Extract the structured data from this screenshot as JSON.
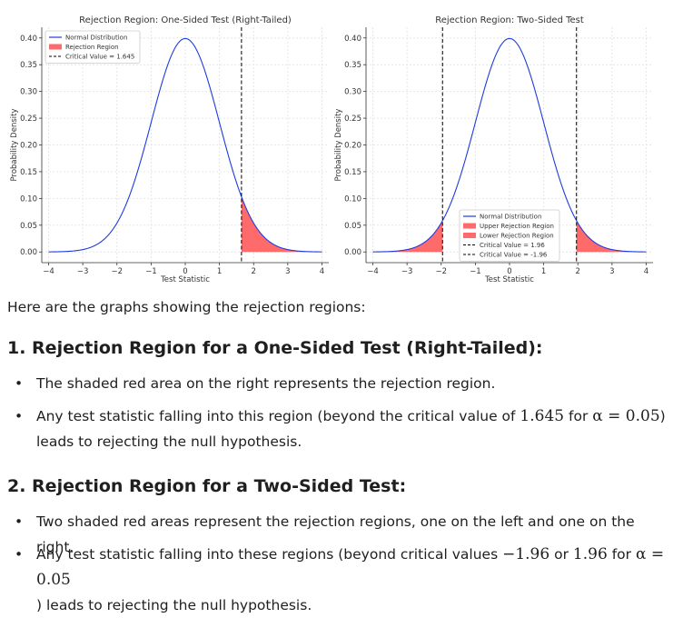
{
  "chart_data": [
    {
      "type": "line",
      "title": "Rejection Region: One-Sided Test (Right-Tailed)",
      "xlabel": "Test Statistic",
      "ylabel": "Probability Density",
      "xlim": [
        -4.2,
        4.2
      ],
      "ylim": [
        -0.02,
        0.42
      ],
      "xticks": [
        -4,
        -3,
        -2,
        -1,
        0,
        1,
        2,
        3,
        4
      ],
      "xtick_labels": [
        "−4",
        "−3",
        "−2",
        "−1",
        "0",
        "1",
        "2",
        "3",
        "4"
      ],
      "yticks": [
        0,
        0.05,
        0.1,
        0.15,
        0.2,
        0.25,
        0.3,
        0.35,
        0.4
      ],
      "ytick_labels": [
        "0.00",
        "0.05",
        "0.10",
        "0.15",
        "0.20",
        "0.25",
        "0.30",
        "0.35",
        "0.40"
      ],
      "grid": true,
      "legend_position": "top-left",
      "series": [
        {
          "name": "Normal Distribution",
          "kind": "normal-pdf",
          "mean": 0,
          "sd": 1,
          "x_range": [
            -4,
            4
          ],
          "color": "#1f3be0"
        }
      ],
      "shaded_regions": [
        {
          "name": "Rejection Region",
          "from": 1.645,
          "to": 4,
          "color": "#ff6b6b"
        }
      ],
      "critical_lines": [
        {
          "name": "Critical Value = 1.645",
          "x": 1.645,
          "style": "dashed",
          "color": "#000000"
        }
      ],
      "legend": [
        {
          "kind": "line",
          "label": "Normal Distribution",
          "color": "#1f3be0"
        },
        {
          "kind": "patch",
          "label": "Rejection Region",
          "color": "#ff6b6b"
        },
        {
          "kind": "dash",
          "label": "Critical Value = 1.645",
          "color": "#000000"
        }
      ]
    },
    {
      "type": "line",
      "title": "Rejection Region: Two-Sided Test",
      "xlabel": "Test Statistic",
      "ylabel": "Probability Density",
      "xlim": [
        -4.2,
        4.2
      ],
      "ylim": [
        -0.02,
        0.42
      ],
      "xticks": [
        -4,
        -3,
        -2,
        -1,
        0,
        1,
        2,
        3,
        4
      ],
      "xtick_labels": [
        "−4",
        "−3",
        "−2",
        "−1",
        "0",
        "1",
        "2",
        "3",
        "4"
      ],
      "yticks": [
        0,
        0.05,
        0.1,
        0.15,
        0.2,
        0.25,
        0.3,
        0.35,
        0.4
      ],
      "ytick_labels": [
        "0.00",
        "0.05",
        "0.10",
        "0.15",
        "0.20",
        "0.25",
        "0.30",
        "0.35",
        "0.40"
      ],
      "grid": true,
      "legend_position": "lower-center",
      "series": [
        {
          "name": "Normal Distribution",
          "kind": "normal-pdf",
          "mean": 0,
          "sd": 1,
          "x_range": [
            -4,
            4
          ],
          "color": "#1f3be0"
        }
      ],
      "shaded_regions": [
        {
          "name": "Upper Rejection Region",
          "from": 1.96,
          "to": 4,
          "color": "#ff6b6b"
        },
        {
          "name": "Lower Rejection Region",
          "from": -4,
          "to": -1.96,
          "color": "#ff6b6b"
        }
      ],
      "critical_lines": [
        {
          "name": "Critical Value = 1.96",
          "x": 1.96,
          "style": "dashed",
          "color": "#000000"
        },
        {
          "name": "Critical Value = -1.96",
          "x": -1.96,
          "style": "dashed",
          "color": "#000000"
        }
      ],
      "legend": [
        {
          "kind": "line",
          "label": "Normal Distribution",
          "color": "#1f3be0"
        },
        {
          "kind": "patch",
          "label": "Upper Rejection Region",
          "color": "#ff6b6b"
        },
        {
          "kind": "patch",
          "label": "Lower Rejection Region",
          "color": "#ff6b6b"
        },
        {
          "kind": "dash",
          "label": "Critical Value = 1.96",
          "color": "#000000"
        },
        {
          "kind": "dash",
          "label": "Critical Value = -1.96",
          "color": "#000000"
        }
      ]
    }
  ],
  "text": {
    "intro": "Here are the graphs showing the rejection regions:",
    "section1": {
      "heading": "1. Rejection Region for a One-Sided Test (Right-Tailed):",
      "bullet1": "The shaded red area on the right represents the rejection region.",
      "bullet2_a": "Any test statistic falling into this region (beyond the critical value of ",
      "bullet2_m1": "1.645",
      "bullet2_b": " for ",
      "bullet2_m2": "α = 0.05",
      "bullet2_c": ")",
      "bullet2_d": "leads to rejecting the null hypothesis."
    },
    "section2": {
      "heading": "2. Rejection Region for a Two-Sided Test:",
      "bullet1": "Two shaded red areas represent the rejection regions, one on the left and one on the right.",
      "bullet2_a": "Any test statistic falling into these regions (beyond critical values ",
      "bullet2_m1": "−1.96",
      "bullet2_b": " or ",
      "bullet2_m2": "1.96",
      "bullet2_c": " for ",
      "bullet2_m3": "α = 0.05",
      "bullet2_d": ") leads to rejecting the null hypothesis."
    },
    "bullet_glyph": "•"
  }
}
